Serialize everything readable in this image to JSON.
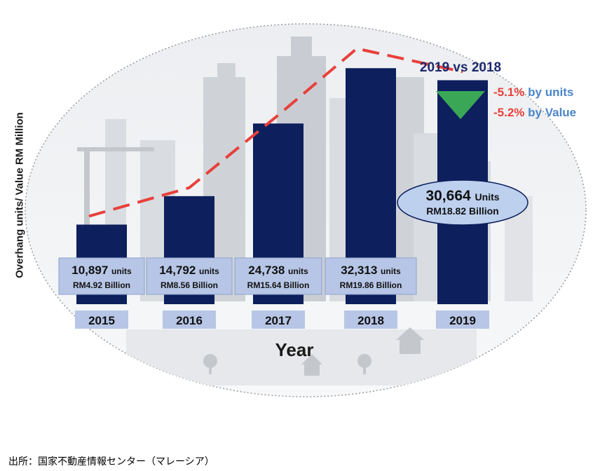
{
  "chart_data": {
    "type": "bar",
    "categories": [
      "2015",
      "2016",
      "2017",
      "2018",
      "2019"
    ],
    "series": [
      {
        "name": "units",
        "values": [
          10897,
          14792,
          24738,
          32313,
          30664
        ]
      }
    ],
    "value_labels": [
      {
        "units": "10,897",
        "units_word": "units",
        "value": "RM4.92 Billion"
      },
      {
        "units": "14,792",
        "units_word": "units",
        "value": "RM8.56 Billion"
      },
      {
        "units": "24,738",
        "units_word": "units",
        "value": "RM15.64 Billion"
      },
      {
        "units": "32,313",
        "units_word": "units",
        "value": "RM19.86 Billion"
      },
      {
        "units": "30,664",
        "units_word": "Units",
        "value": "RM18.82 Billion"
      }
    ],
    "xlabel": "Year",
    "ylabel": "Overhang units/ Value RM Million",
    "ylim": [
      0,
      38000
    ],
    "trend_line": "dashed",
    "annotation": {
      "title": "2019 vs 2018",
      "changes": [
        {
          "pct": "-5.1%",
          "label": "by units"
        },
        {
          "pct": "-5.2%",
          "label": "by Value"
        }
      ]
    },
    "colors": {
      "bar": "#0d1f5c",
      "label_box": "#b7c6e6",
      "trend": "#e8403a",
      "down_arrow": "#3aa757",
      "highlight_ellipse": "#bdd0ee"
    }
  },
  "source": "出所：国家不動産情報センター（マレーシア）"
}
